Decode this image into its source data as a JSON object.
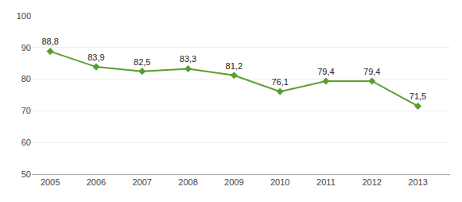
{
  "chart_data": {
    "type": "line",
    "x": [
      2005,
      2006,
      2007,
      2008,
      2009,
      2010,
      2011,
      2012,
      2013
    ],
    "values": [
      88.8,
      83.9,
      82.5,
      83.3,
      81.2,
      76.1,
      79.4,
      79.4,
      71.5
    ],
    "value_labels": [
      "88,8",
      "83,9",
      "82,5",
      "83,3",
      "81,2",
      "76,1",
      "79,4",
      "79,4",
      "71,5"
    ],
    "data_labels": true,
    "color": "#5a9e2f",
    "marker": "diamond",
    "xlim": [
      2004.6,
      2013.7
    ],
    "xticks": [
      2005,
      2006,
      2007,
      2008,
      2009,
      2010,
      2011,
      2012,
      2013
    ],
    "ylim": [
      50,
      100
    ],
    "yticks": [
      50,
      60,
      70,
      80,
      90,
      100
    ],
    "grid": true
  }
}
